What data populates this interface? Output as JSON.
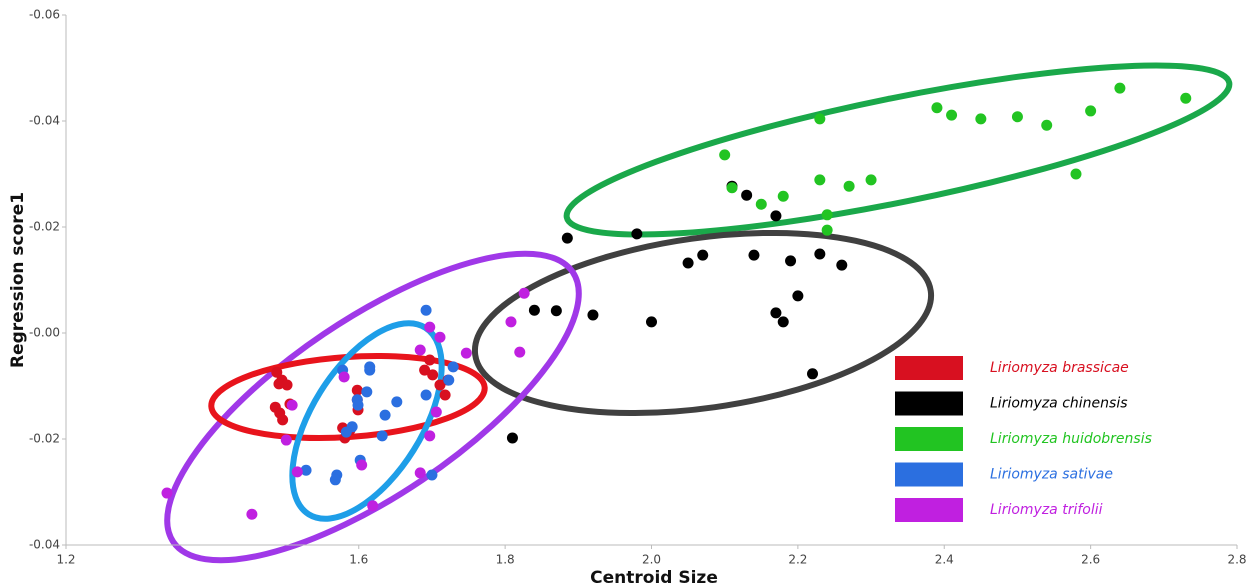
{
  "chart_data": {
    "type": "scatter",
    "x_label": "Centroid Size",
    "y_label": "Regression score1",
    "xlim": [
      1.2,
      2.8
    ],
    "ylim": [
      -0.06,
      0.04
    ],
    "y_inverted": true,
    "xticks": [
      1.2,
      1.6,
      1.8,
      {
        "value": 2.0,
        "label": "2.0"
      },
      2.2,
      2.4,
      2.6,
      2.8
    ],
    "yticks": [
      -0.06,
      -0.04,
      -0.02,
      {
        "value": 0,
        "label": "-0.00"
      },
      {
        "value": 0.02,
        "label": "-0.02"
      },
      {
        "value": 0.04,
        "label": "-0.04"
      }
    ],
    "series": [
      {
        "name": "Liriomyza brassicae",
        "color": "#d81020",
        "x": [
          1.488,
          1.495,
          1.491,
          1.502,
          1.486,
          1.492,
          1.496,
          1.506,
          1.598,
          1.598,
          1.599,
          1.578,
          1.588,
          1.581,
          1.69,
          1.697,
          1.711,
          1.718,
          1.722,
          1.701
        ],
        "values": [
          0.0074,
          0.0089,
          0.0096,
          0.0098,
          0.014,
          0.0151,
          0.0164,
          0.0134,
          0.0108,
          0.0126,
          0.0145,
          0.0179,
          0.0183,
          0.0198,
          0.007,
          0.0051,
          0.0098,
          0.0117,
          0.0089,
          0.0079
        ]
      },
      {
        "name": "Liriomyza chinensis",
        "color": "#000000",
        "x": [
          1.885,
          1.98,
          2.05,
          2.07,
          2.11,
          2.13,
          2.14,
          2.17,
          2.19,
          2.2,
          2.17,
          2.18,
          2.23,
          2.26,
          2.22,
          1.81,
          1.84,
          1.87,
          1.92,
          2.0
        ],
        "values": [
          -0.0179,
          -0.0187,
          -0.0132,
          -0.0147,
          -0.0277,
          -0.026,
          -0.0147,
          -0.0221,
          -0.0136,
          -0.007,
          -0.0038,
          -0.0021,
          -0.0149,
          -0.0128,
          0.0077,
          0.0198,
          -0.0043,
          -0.0042,
          -0.0034,
          -0.0021
        ]
      },
      {
        "name": "Liriomyza huidobrensis",
        "color": "#22c422",
        "x": [
          2.1,
          2.11,
          2.15,
          2.18,
          2.23,
          2.23,
          2.24,
          2.24,
          2.27,
          2.3,
          2.39,
          2.41,
          2.45,
          2.5,
          2.54,
          2.58,
          2.6,
          2.64,
          2.73
        ],
        "values": [
          -0.0336,
          -0.0274,
          -0.0243,
          -0.0258,
          -0.0404,
          -0.0289,
          -0.0223,
          -0.0194,
          -0.0277,
          -0.0289,
          -0.0425,
          -0.0411,
          -0.0404,
          -0.0408,
          -0.0392,
          -0.03,
          -0.0419,
          -0.0462,
          -0.0443
        ]
      },
      {
        "name": "Liriomyza sativae",
        "color": "#2b6fe0",
        "x": [
          1.692,
          1.578,
          1.615,
          1.598,
          1.611,
          1.636,
          1.652,
          1.632,
          1.615,
          1.591,
          1.583,
          1.602,
          1.57,
          1.528,
          1.692,
          1.7,
          1.729,
          1.723,
          1.568,
          1.599
        ],
        "values": [
          -0.0043,
          0.007,
          0.0064,
          0.0126,
          0.0111,
          0.0155,
          0.013,
          0.0194,
          0.007,
          0.0177,
          0.0187,
          0.024,
          0.0268,
          0.0259,
          0.0117,
          0.0268,
          0.0064,
          0.0089,
          0.0277,
          0.0136
        ]
      },
      {
        "name": "Liriomyza trifolii",
        "color": "#c020e0",
        "x": [
          1.338,
          1.454,
          1.501,
          1.516,
          1.58,
          1.604,
          1.619,
          1.684,
          1.697,
          1.706,
          1.697,
          1.711,
          1.747,
          1.808,
          1.826,
          1.82,
          1.509,
          1.684
        ],
        "values": [
          0.0302,
          0.0342,
          0.0202,
          0.0262,
          0.0083,
          0.0249,
          0.0326,
          0.0264,
          0.0194,
          0.0149,
          -0.0011,
          0.0008,
          0.0038,
          -0.0021,
          -0.0075,
          0.0036,
          0.0136,
          0.0032
        ]
      }
    ]
  }
}
